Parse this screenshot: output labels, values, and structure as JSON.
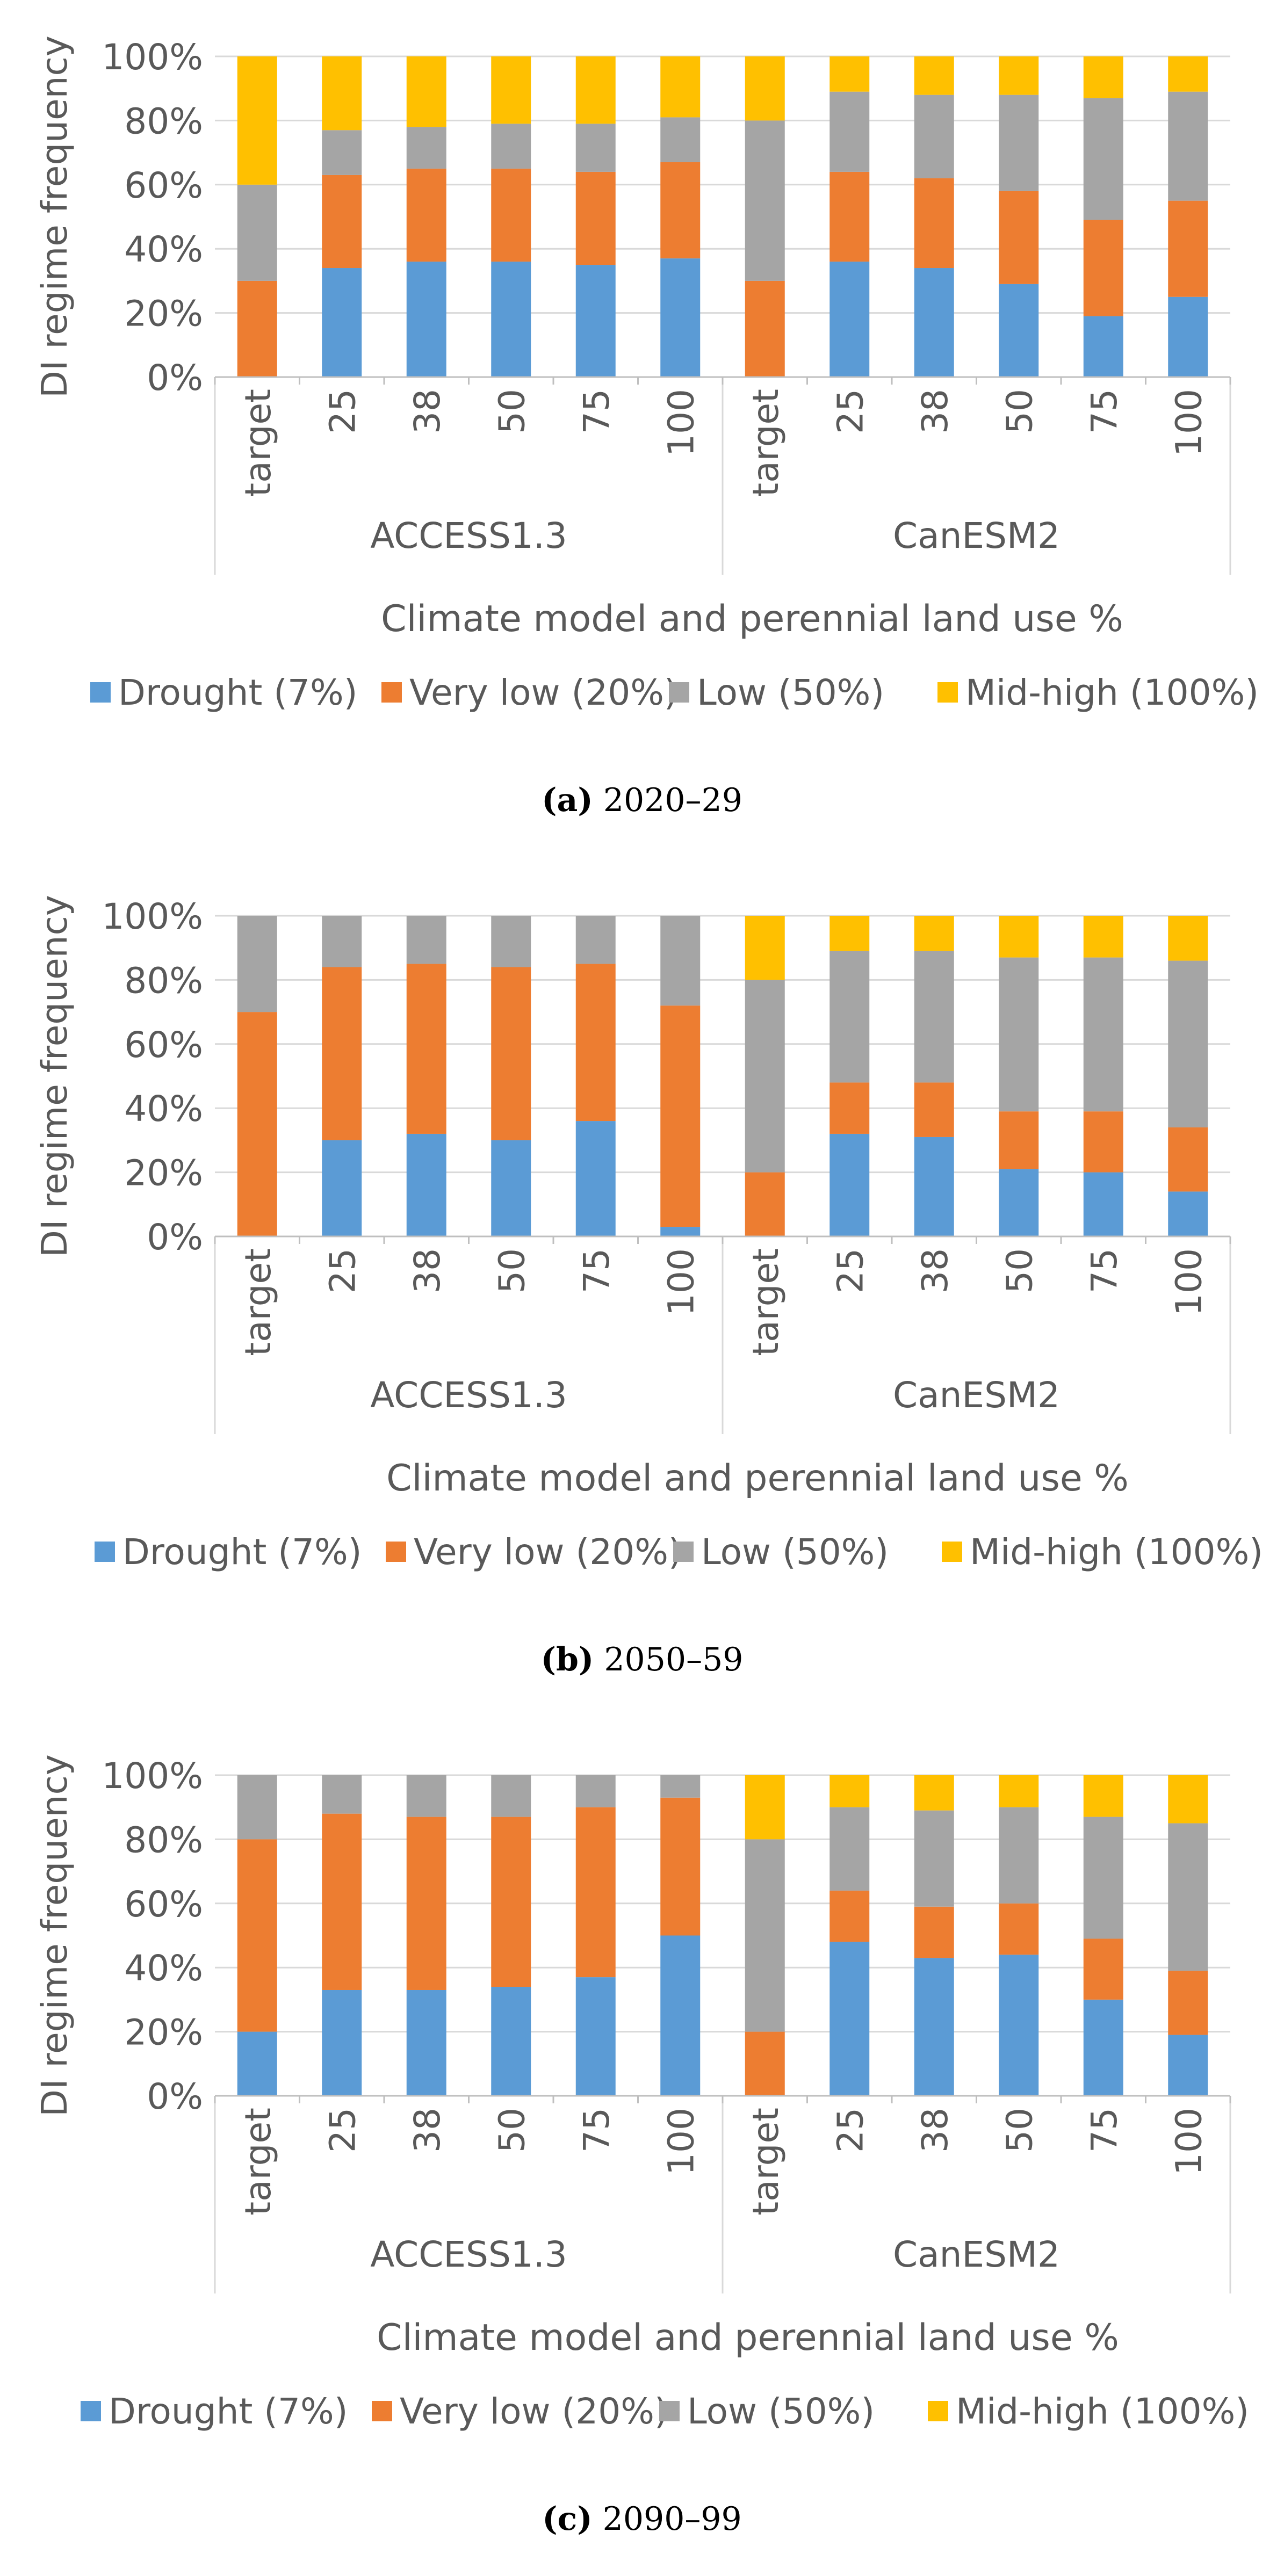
{
  "chart_data": [
    {
      "type": "bar",
      "stacked": true,
      "caption_label": "(a)",
      "caption_text": "2020–29",
      "ylabel": "DI regime frequency",
      "xlabel": "Climate model and perennial land use %",
      "ylim": [
        0,
        100
      ],
      "yticks": [
        "0%",
        "20%",
        "40%",
        "60%",
        "80%",
        "100%"
      ],
      "groups": [
        "ACCESS1.3",
        "CanESM2"
      ],
      "categories": [
        "target",
        "25",
        "38",
        "50",
        "75",
        "100",
        "target",
        "25",
        "38",
        "50",
        "75",
        "100"
      ],
      "legend_position": "bottom",
      "series": [
        {
          "name": "Drought (7%)",
          "color": "#5B9BD5",
          "values": [
            0,
            34,
            36,
            36,
            35,
            37,
            0,
            36,
            34,
            29,
            19,
            25
          ]
        },
        {
          "name": "Very low  (20%)",
          "color": "#ED7D31",
          "values": [
            30,
            29,
            29,
            29,
            29,
            30,
            30,
            28,
            28,
            29,
            30,
            30
          ]
        },
        {
          "name": "Low (50%)",
          "color": "#A5A5A5",
          "values": [
            30,
            14,
            13,
            14,
            15,
            14,
            50,
            25,
            26,
            30,
            38,
            34
          ]
        },
        {
          "name": "Mid-high (100%)",
          "color": "#FFC000",
          "values": [
            40,
            23,
            22,
            21,
            21,
            19,
            20,
            11,
            12,
            12,
            13,
            11
          ]
        }
      ]
    },
    {
      "type": "bar",
      "stacked": true,
      "caption_label": "(b)",
      "caption_text": "2050–59",
      "ylabel": "DI regime frequency",
      "xlabel": "Climate model and perennial land use %",
      "ylim": [
        0,
        100
      ],
      "yticks": [
        "0%",
        "20%",
        "40%",
        "60%",
        "80%",
        "100%"
      ],
      "groups": [
        "ACCESS1.3",
        "CanESM2"
      ],
      "categories": [
        "target",
        "25",
        "38",
        "50",
        "75",
        "100",
        "target",
        "25",
        "38",
        "50",
        "75",
        "100"
      ],
      "legend_position": "bottom",
      "series": [
        {
          "name": "Drought (7%)",
          "color": "#5B9BD5",
          "values": [
            0,
            30,
            32,
            30,
            36,
            3,
            0,
            32,
            31,
            21,
            20,
            14
          ]
        },
        {
          "name": "Very low  (20%)",
          "color": "#ED7D31",
          "values": [
            70,
            54,
            53,
            54,
            49,
            69,
            20,
            16,
            17,
            18,
            19,
            20
          ]
        },
        {
          "name": "Low (50%)",
          "color": "#A5A5A5",
          "values": [
            30,
            16,
            15,
            16,
            15,
            28,
            60,
            41,
            41,
            48,
            48,
            52
          ]
        },
        {
          "name": "Mid-high (100%)",
          "color": "#FFC000",
          "values": [
            0,
            0,
            0,
            0,
            0,
            0,
            20,
            11,
            11,
            13,
            13,
            14
          ]
        }
      ]
    },
    {
      "type": "bar",
      "stacked": true,
      "caption_label": "(c)",
      "caption_text": "2090–99",
      "ylabel": "DI regime frequency",
      "xlabel": "Climate model and perennial land use %",
      "ylim": [
        0,
        100
      ],
      "yticks": [
        "0%",
        "20%",
        "40%",
        "60%",
        "80%",
        "100%"
      ],
      "groups": [
        "ACCESS1.3",
        "CanESM2"
      ],
      "categories": [
        "target",
        "25",
        "38",
        "50",
        "75",
        "100",
        "target",
        "25",
        "38",
        "50",
        "75",
        "100"
      ],
      "legend_position": "bottom",
      "series": [
        {
          "name": "Drought (7%)",
          "color": "#5B9BD5",
          "values": [
            20,
            33,
            33,
            34,
            37,
            50,
            0,
            48,
            43,
            44,
            30,
            19
          ]
        },
        {
          "name": "Very low  (20%)",
          "color": "#ED7D31",
          "values": [
            60,
            55,
            54,
            53,
            53,
            43,
            20,
            16,
            16,
            16,
            19,
            20
          ]
        },
        {
          "name": "Low (50%)",
          "color": "#A5A5A5",
          "values": [
            20,
            12,
            13,
            13,
            10,
            7,
            60,
            26,
            30,
            30,
            38,
            46
          ]
        },
        {
          "name": "Mid-high (100%)",
          "color": "#FFC000",
          "values": [
            0,
            0,
            0,
            0,
            0,
            0,
            20,
            10,
            11,
            10,
            13,
            15
          ]
        }
      ]
    }
  ]
}
